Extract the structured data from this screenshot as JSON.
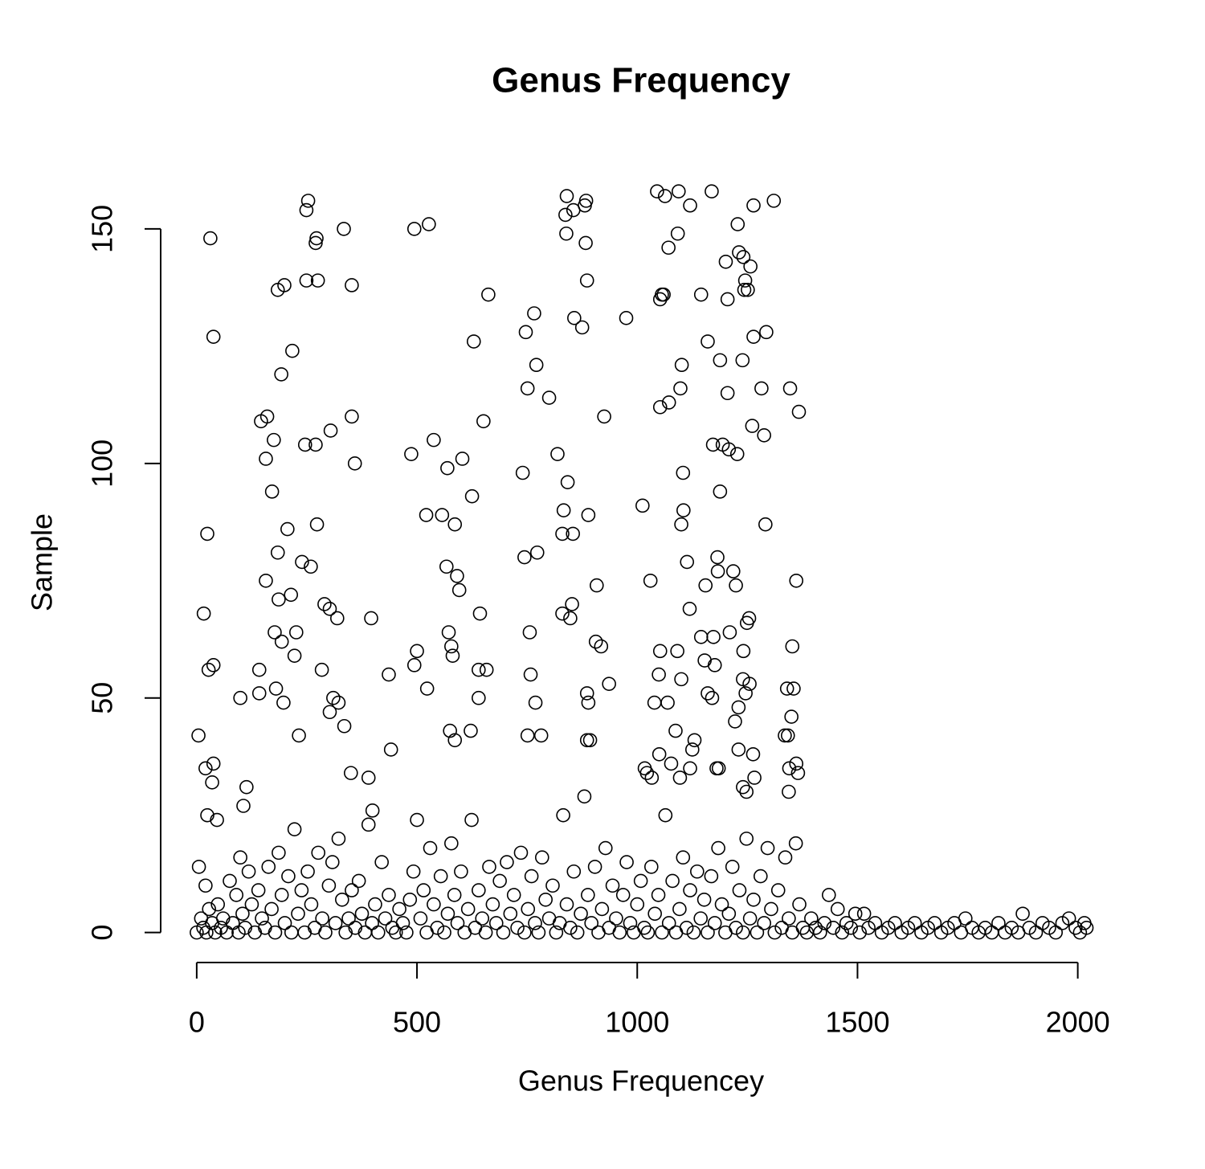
{
  "chart_data": {
    "type": "scatter",
    "title": "Genus Frequency",
    "x_label": "Genus Frequencey",
    "y_label": "Sample",
    "color": "#000000",
    "xlim": [
      -80,
      2101
    ],
    "ylim": [
      -6.4,
      165.4
    ],
    "xticks": [
      0,
      500,
      1000,
      1500,
      2000
    ],
    "yticks": [
      0,
      50,
      100,
      150
    ],
    "x": [
      31,
      38,
      24,
      16,
      27,
      38,
      4,
      20,
      38,
      35,
      24,
      46,
      99,
      106,
      113,
      99,
      142,
      142,
      146,
      160,
      157,
      175,
      157,
      171,
      184,
      199,
      184,
      186,
      192,
      177,
      193,
      180,
      197,
      206,
      214,
      217,
      226,
      232,
      239,
      222,
      246,
      249,
      253,
      249,
      259,
      270,
      270,
      272,
      275,
      273,
      290,
      284,
      302,
      304,
      310,
      319,
      302,
      322,
      334,
      335,
      352,
      352,
      359,
      350,
      390,
      396,
      399,
      436,
      441,
      487,
      494,
      527,
      494,
      500,
      521,
      523,
      538,
      557,
      569,
      567,
      591,
      596,
      586,
      572,
      578,
      581,
      575,
      586,
      603,
      629,
      625,
      643,
      622,
      662,
      651,
      658,
      640,
      640,
      747,
      751,
      766,
      771,
      740,
      744,
      773,
      756,
      758,
      769,
      751,
      782,
      800,
      819,
      840,
      837,
      855,
      839,
      884,
      881,
      883,
      857,
      875,
      886,
      842,
      833,
      889,
      830,
      854,
      830,
      848,
      852,
      908,
      906,
      918,
      886,
      889,
      886,
      893,
      975,
      925,
      936,
      1012,
      1045,
      1063,
      1094,
      1120,
      1169,
      1310,
      1071,
      1092,
      1056,
      1060,
      1052,
      1145,
      1228,
      1231,
      1241,
      1264,
      1257,
      1201,
      1205,
      1245,
      1251,
      1243,
      1160,
      1264,
      1293,
      1101,
      1188,
      1239,
      1098,
      1205,
      1282,
      1347,
      1072,
      1052,
      1367,
      1261,
      1288,
      1172,
      1194,
      1208,
      1227,
      1104,
      1188,
      1105,
      1100,
      1291,
      1182,
      1113,
      1183,
      1218,
      1224,
      1155,
      1361,
      1030,
      1119,
      1254,
      1249,
      1210,
      1173,
      1145,
      1352,
      1052,
      1241,
      1091,
      1176,
      1153,
      1049,
      1100,
      1240,
      1255,
      1340,
      1355,
      1160,
      1170,
      1246,
      1039,
      1069,
      1230,
      1350,
      1222,
      1087,
      1130,
      1335,
      1342,
      1125,
      1050,
      1230,
      1263,
      1180,
      1185,
      1345,
      1361,
      1365,
      1017,
      1022,
      1033,
      1097,
      1077,
      1240,
      1266,
      1248,
      1344,
      1120,
      0,
      5,
      10,
      15,
      20,
      22,
      28,
      35,
      42,
      48,
      55,
      60,
      68,
      75,
      82,
      90,
      95,
      104,
      110,
      118,
      125,
      132,
      140,
      148,
      155,
      163,
      170,
      178,
      186,
      193,
      200,
      208,
      215,
      222,
      230,
      238,
      245,
      252,
      260,
      268,
      276,
      285,
      292,
      300,
      308,
      315,
      322,
      330,
      338,
      345,
      352,
      360,
      368,
      375,
      382,
      390,
      398,
      405,
      412,
      420,
      428,
      436,
      444,
      452,
      460,
      468,
      476,
      484,
      492,
      500,
      508,
      515,
      522,
      530,
      538,
      546,
      554,
      562,
      570,
      578,
      585,
      592,
      600,
      608,
      616,
      624,
      632,
      640,
      648,
      656,
      664,
      672,
      680,
      688,
      696,
      704,
      712,
      720,
      728,
      736,
      744,
      752,
      760,
      768,
      776,
      784,
      792,
      800,
      808,
      816,
      824,
      832,
      840,
      848,
      856,
      864,
      872,
      880,
      888,
      896,
      904,
      912,
      920,
      928,
      936,
      944,
      952,
      960,
      968,
      976,
      984,
      992,
      1000,
      1008,
      1016,
      1024,
      1032,
      1040,
      1048,
      1056,
      1064,
      1072,
      1080,
      1088,
      1096,
      1104,
      1112,
      1120,
      1128,
      1136,
      1144,
      1152,
      1160,
      1168,
      1176,
      1184,
      1192,
      1200,
      1208,
      1216,
      1224,
      1232,
      1240,
      1248,
      1256,
      1264,
      1272,
      1280,
      1288,
      1296,
      1304,
      1312,
      1320,
      1328,
      1336,
      1344,
      1352,
      1360,
      1368,
      1376,
      1385,
      1395,
      1405,
      1415,
      1425,
      1435,
      1445,
      1455,
      1465,
      1475,
      1485,
      1495,
      1505,
      1515,
      1525,
      1540,
      1555,
      1570,
      1585,
      1600,
      1615,
      1630,
      1645,
      1660,
      1675,
      1690,
      1705,
      1720,
      1735,
      1745,
      1760,
      1775,
      1790,
      1805,
      1820,
      1835,
      1850,
      1865,
      1875,
      1890,
      1905,
      1920,
      1935,
      1950,
      1965,
      1980,
      1995,
      2005,
      2015,
      2020
    ],
    "values": [
      148,
      127,
      85,
      68,
      56,
      57,
      42,
      35,
      36,
      32,
      25,
      24,
      50,
      27,
      31,
      16,
      56,
      51,
      109,
      110,
      101,
      105,
      75,
      94,
      137,
      138,
      81,
      71,
      119,
      64,
      62,
      52,
      49,
      86,
      72,
      124,
      64,
      42,
      79,
      59,
      104,
      154,
      156,
      139,
      78,
      104,
      147,
      148,
      139,
      87,
      70,
      56,
      69,
      107,
      50,
      67,
      47,
      49,
      150,
      44,
      138,
      110,
      100,
      34,
      33,
      67,
      26,
      55,
      39,
      102,
      150,
      151,
      57,
      60,
      89,
      52,
      105,
      89,
      99,
      78,
      76,
      73,
      87,
      64,
      61,
      59,
      43,
      41,
      101,
      126,
      93,
      68,
      43,
      136,
      109,
      56,
      56,
      50,
      128,
      116,
      132,
      121,
      98,
      80,
      81,
      64,
      55,
      49,
      42,
      42,
      114,
      102,
      157,
      153,
      154,
      149,
      156,
      155,
      147,
      131,
      129,
      139,
      96,
      90,
      89,
      85,
      85,
      68,
      67,
      70,
      74,
      62,
      61,
      51,
      49,
      41,
      41,
      131,
      110,
      53,
      91,
      158,
      157,
      158,
      155,
      158,
      156,
      146,
      149,
      136,
      136,
      135,
      136,
      151,
      145,
      144,
      155,
      142,
      143,
      135,
      139,
      137,
      137,
      126,
      127,
      128,
      121,
      122,
      122,
      116,
      115,
      116,
      116,
      113,
      112,
      111,
      108,
      106,
      104,
      104,
      103,
      102,
      98,
      94,
      90,
      87,
      87,
      80,
      79,
      77,
      77,
      74,
      74,
      75,
      75,
      69,
      67,
      66,
      64,
      63,
      63,
      61,
      60,
      60,
      60,
      57,
      58,
      55,
      54,
      54,
      53,
      52,
      52,
      51,
      50,
      51,
      49,
      49,
      48,
      46,
      45,
      43,
      41,
      42,
      42,
      39,
      38,
      39,
      38,
      35,
      35,
      35,
      36,
      34,
      35,
      34,
      33,
      33,
      36,
      31,
      33,
      30,
      30,
      35,
      0,
      14,
      3,
      1,
      10,
      0,
      5,
      2,
      0,
      6,
      1,
      3,
      0,
      11,
      2,
      8,
      0,
      4,
      1,
      13,
      6,
      0,
      9,
      3,
      1,
      14,
      5,
      0,
      17,
      8,
      2,
      12,
      0,
      22,
      4,
      9,
      0,
      13,
      6,
      1,
      17,
      3,
      0,
      10,
      15,
      2,
      20,
      7,
      0,
      3,
      9,
      1,
      11,
      4,
      0,
      23,
      2,
      6,
      0,
      15,
      3,
      8,
      1,
      0,
      5,
      2,
      0,
      7,
      13,
      24,
      3,
      9,
      0,
      18,
      6,
      1,
      12,
      0,
      4,
      19,
      8,
      2,
      13,
      0,
      5,
      24,
      1,
      9,
      3,
      0,
      14,
      6,
      2,
      11,
      0,
      15,
      4,
      8,
      1,
      17,
      0,
      5,
      12,
      2,
      0,
      16,
      7,
      3,
      10,
      0,
      2,
      25,
      6,
      1,
      13,
      0,
      4,
      29,
      8,
      2,
      14,
      0,
      5,
      18,
      1,
      10,
      3,
      0,
      8,
      15,
      2,
      0,
      6,
      11,
      1,
      0,
      14,
      4,
      8,
      0,
      25,
      2,
      11,
      0,
      5,
      16,
      1,
      9,
      0,
      13,
      3,
      7,
      0,
      12,
      2,
      18,
      6,
      0,
      4,
      14,
      1,
      9,
      0,
      20,
      3,
      7,
      0,
      12,
      2,
      18,
      5,
      0,
      9,
      1,
      16,
      3,
      0,
      19,
      6,
      1,
      0,
      3,
      1,
      0,
      2,
      8,
      1,
      5,
      0,
      2,
      1,
      4,
      0,
      4,
      1,
      2,
      0,
      1,
      2,
      0,
      1,
      2,
      0,
      1,
      2,
      0,
      1,
      2,
      0,
      3,
      1,
      0,
      1,
      0,
      2,
      0,
      1,
      0,
      4,
      1,
      0,
      2,
      1,
      0,
      2,
      3,
      1,
      0,
      2,
      1
    ]
  }
}
